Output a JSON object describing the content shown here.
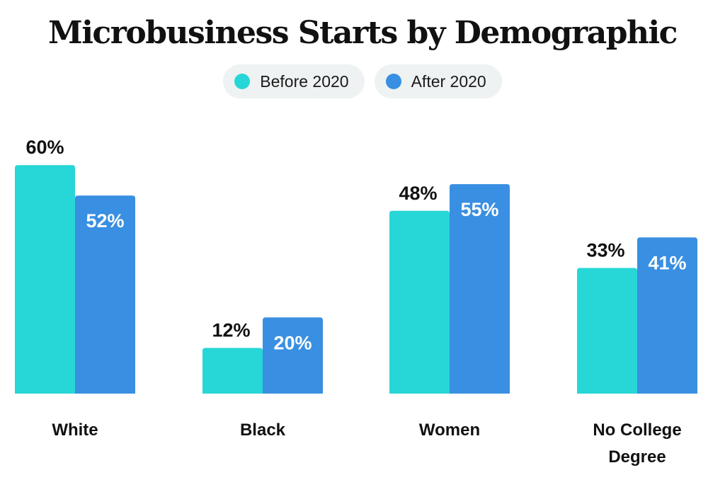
{
  "chart_data": {
    "type": "bar",
    "title": "Microbusiness Starts by Demographic",
    "categories": [
      [
        "White"
      ],
      [
        "Black"
      ],
      [
        "Women"
      ],
      [
        "No College",
        "Degree"
      ]
    ],
    "series": [
      {
        "name": "Before 2020",
        "color": "#27d6d6",
        "label_color": "#111111",
        "values": [
          60,
          12,
          48,
          33
        ],
        "labels": [
          "60%",
          "12%",
          "48%",
          "33%"
        ]
      },
      {
        "name": "After 2020",
        "color": "#398fe1",
        "label_color": "#ffffff",
        "values": [
          52,
          20,
          55,
          41
        ],
        "labels": [
          "52%",
          "20%",
          "55%",
          "41%"
        ]
      }
    ],
    "ylim": [
      0,
      60
    ],
    "legend_position": "top-center",
    "xlabel": "",
    "ylabel": ""
  }
}
